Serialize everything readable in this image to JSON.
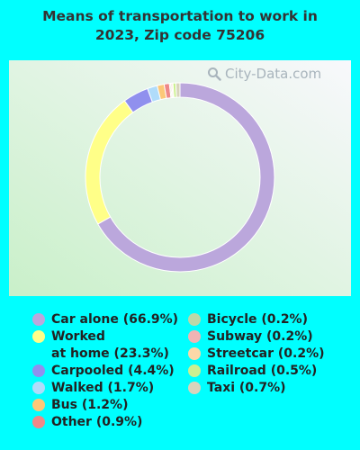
{
  "title_lines": [
    "Means of transportation to work in",
    "2023, Zip code 75206"
  ],
  "watermark": "City-Data.com",
  "colors": {
    "background": "#00ffff",
    "plot_gradient_top_right": "#f8f8fc",
    "plot_gradient_bottom_left": "#c9f0c9"
  },
  "chart_data": {
    "type": "pie",
    "subtype": "donut",
    "title": "Means of transportation to work in 2023, Zip code 75206",
    "slices": [
      {
        "label": "Car alone (66.9%)",
        "lines": [
          "Car alone (66.9%)"
        ],
        "value": 66.9,
        "color": "#bba7dc",
        "column": "left"
      },
      {
        "label": "Worked at home (23.3%)",
        "lines": [
          "Worked",
          "at home (23.3%)"
        ],
        "value": 23.3,
        "color": "#ffff88",
        "column": "left"
      },
      {
        "label": "Carpooled (4.4%)",
        "lines": [
          "Carpooled (4.4%)"
        ],
        "value": 4.4,
        "color": "#9090ee",
        "column": "left"
      },
      {
        "label": "Walked (1.7%)",
        "lines": [
          "Walked (1.7%)"
        ],
        "value": 1.7,
        "color": "#b0dcfa",
        "column": "left"
      },
      {
        "label": "Bus (1.2%)",
        "lines": [
          "Bus (1.2%)"
        ],
        "value": 1.2,
        "color": "#fcc878",
        "column": "left"
      },
      {
        "label": "Other (0.9%)",
        "lines": [
          "Other (0.9%)"
        ],
        "value": 0.9,
        "color": "#ee8888",
        "column": "left"
      },
      {
        "label": "Bicycle (0.2%)",
        "lines": [
          "Bicycle (0.2%)"
        ],
        "value": 0.2,
        "color": "#bcd8a8",
        "column": "right"
      },
      {
        "label": "Subway (0.2%)",
        "lines": [
          "Subway (0.2%)"
        ],
        "value": 0.2,
        "color": "#f0b4b4",
        "column": "right"
      },
      {
        "label": "Streetcar (0.2%)",
        "lines": [
          "Streetcar (0.2%)"
        ],
        "value": 0.2,
        "color": "#fcd8a8",
        "column": "right"
      },
      {
        "label": "Railroad (0.5%)",
        "lines": [
          "Railroad (0.5%)"
        ],
        "value": 0.5,
        "color": "#ccf090",
        "column": "right"
      },
      {
        "label": "Taxi (0.7%)",
        "lines": [
          "Taxi (0.7%)"
        ],
        "value": 0.7,
        "color": "#d8d4bc",
        "column": "right"
      }
    ],
    "legend_position": "bottom"
  }
}
